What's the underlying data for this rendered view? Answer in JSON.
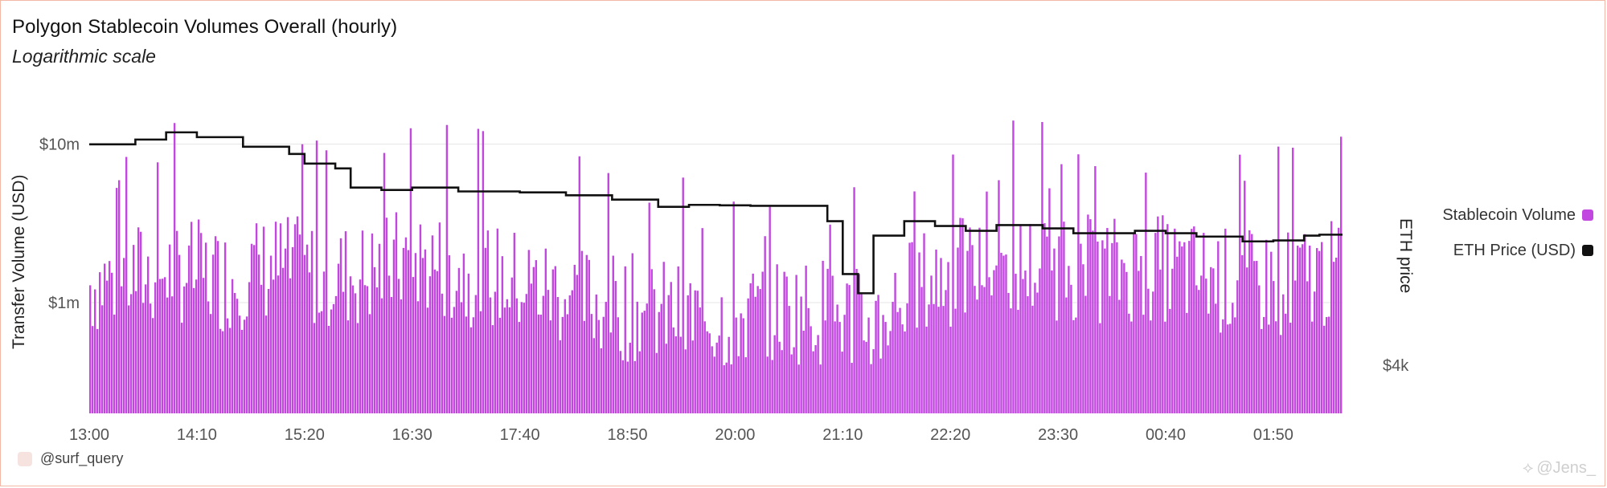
{
  "header": {
    "title": "Polygon Stablecoin Volumes Overall (hourly)",
    "subtitle": "Logarithmic scale"
  },
  "footer": {
    "handle": "@surf_query",
    "watermark": "@Jens_"
  },
  "colors": {
    "volume_bar": "#c247e0",
    "eth_line": "#111111",
    "grid": "#e6e6e6",
    "border": "#f3b9a6"
  },
  "chart_data": {
    "type": "bar",
    "title": "Polygon Stablecoin Volumes Overall (hourly)",
    "subtitle": "Logarithmic scale",
    "ylabel": "Transfer Volume (USD)",
    "y2label": "ETH price",
    "yscale": "log",
    "y_ticks": [
      "$10m",
      "$1m"
    ],
    "y2_ticks": [
      "$4k"
    ],
    "x_ticks": [
      "13:00",
      "14:10",
      "15:20",
      "16:30",
      "17:40",
      "18:50",
      "20:00",
      "21:10",
      "22:20",
      "23:30",
      "00:40",
      "01:50"
    ],
    "legend_position": "right",
    "grid": true,
    "series": [
      {
        "name": "Stablecoin Volume",
        "type": "bar",
        "axis": "left",
        "color": "#c247e0",
        "note": "hourly volume bars (one per 10 minutes), about $0.2m to $20m; y sampled coarsely",
        "x": [
          "13:00",
          "13:30",
          "14:00",
          "14:30",
          "15:00",
          "15:30",
          "16:00",
          "16:30",
          "17:00",
          "17:30",
          "18:00",
          "18:30",
          "19:00",
          "19:30",
          "20:00",
          "20:30",
          "21:00",
          "21:30",
          "22:00",
          "22:30",
          "23:00",
          "23:30",
          "00:00",
          "00:30",
          "01:00",
          "01:30",
          "02:00",
          "02:20"
        ],
        "values": [
          1.3,
          1.5,
          1.6,
          1.4,
          1.7,
          1.5,
          1.5,
          1.9,
          1.6,
          1.4,
          1.2,
          1.0,
          0.9,
          0.8,
          0.8,
          0.9,
          0.9,
          0.7,
          1.3,
          1.6,
          1.7,
          1.7,
          1.6,
          1.7,
          1.5,
          1.3,
          1.4,
          1.5
        ]
      },
      {
        "name": "ETH Price (USD)",
        "type": "line",
        "axis": "right",
        "color": "#111111",
        "x": [
          "13:00",
          "13:30",
          "13:50",
          "14:10",
          "14:40",
          "15:10",
          "15:20",
          "15:40",
          "15:50",
          "16:10",
          "16:30",
          "17:00",
          "17:40",
          "18:10",
          "18:40",
          "19:10",
          "19:30",
          "19:50",
          "20:10",
          "20:40",
          "21:00",
          "21:10",
          "21:20",
          "21:30",
          "21:50",
          "22:10",
          "22:30",
          "22:50",
          "23:20",
          "23:40",
          "00:00",
          "00:20",
          "00:40",
          "01:00",
          "01:30",
          "01:50",
          "02:10",
          "02:20"
        ],
        "values": [
          4460,
          4470,
          4485,
          4475,
          4455,
          4440,
          4420,
          4410,
          4370,
          4365,
          4370,
          4362,
          4360,
          4354,
          4345,
          4330,
          4334,
          4333,
          4332,
          4332,
          4300,
          4190,
          4150,
          4270,
          4300,
          4290,
          4280,
          4292,
          4285,
          4275,
          4275,
          4280,
          4275,
          4268,
          4258,
          4260,
          4270,
          4272
        ]
      }
    ]
  }
}
